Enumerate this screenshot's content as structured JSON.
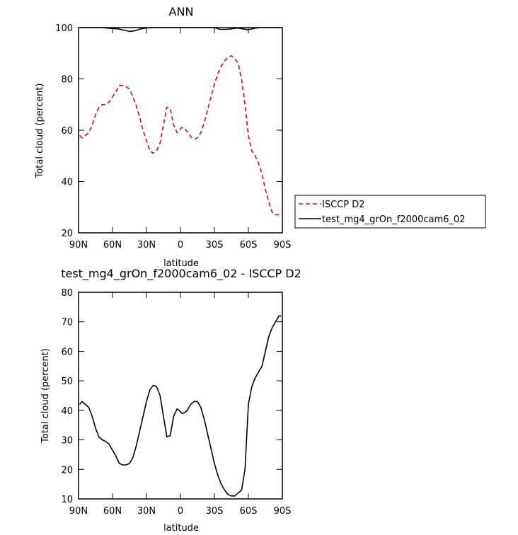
{
  "chart_data": [
    {
      "type": "line",
      "title": "ANN",
      "xlabel": "latitude",
      "ylabel": "Total cloud (percent)",
      "xlim": [
        90,
        -90
      ],
      "ylim": [
        20,
        100
      ],
      "x_ticks": [
        90,
        60,
        30,
        0,
        -30,
        -60,
        -90
      ],
      "x_tick_labels": [
        "90N",
        "60N",
        "30N",
        "0",
        "30S",
        "60S",
        "90S"
      ],
      "y_ticks": [
        20,
        40,
        60,
        80,
        100
      ],
      "y_tick_labels": [
        "20",
        "40",
        "60",
        "80",
        "100"
      ],
      "legend": {
        "placement": "right"
      },
      "series": [
        {
          "name": "ISCCP D2",
          "color": "#e8000b",
          "dash": "dashed",
          "x": [
            89,
            87,
            84,
            81,
            78,
            75,
            72,
            69,
            66,
            63,
            60,
            57,
            54,
            51,
            48,
            45,
            42,
            39,
            36,
            33,
            30,
            27,
            24,
            21,
            18,
            15,
            12,
            9,
            6,
            3,
            1,
            -1,
            -3,
            -6,
            -9,
            -12,
            -15,
            -18,
            -21,
            -24,
            -27,
            -30,
            -33,
            -36,
            -39,
            -42,
            -45,
            -48,
            -51,
            -54,
            -57,
            -60,
            -63,
            -66,
            -69,
            -72,
            -75,
            -78,
            -81,
            -84,
            -87,
            -89
          ],
          "y": [
            58,
            57,
            58,
            59,
            62,
            66,
            69,
            70,
            70,
            71,
            73,
            75,
            77.5,
            77.5,
            77,
            76,
            73,
            69.5,
            65,
            60,
            56,
            52,
            51,
            52,
            55,
            62,
            69,
            68.5,
            62,
            59,
            60,
            61,
            61,
            59.5,
            57.5,
            56.5,
            57,
            59,
            63,
            68,
            73,
            78,
            82,
            85,
            87,
            88.5,
            89,
            88,
            86,
            80,
            70,
            58,
            52,
            50,
            47,
            43,
            37,
            32,
            28,
            27,
            27,
            27
          ]
        },
        {
          "name": "test_mg4_grOn_f2000cam6_02",
          "color": "#000000",
          "dash": "solid",
          "x": [
            89,
            80,
            70,
            62,
            55,
            50,
            45,
            40,
            35,
            30,
            20,
            10,
            0,
            -10,
            -20,
            -30,
            -35,
            -40,
            -45,
            -50,
            -55,
            -60,
            -65,
            -70,
            -80,
            -89
          ],
          "y": [
            100,
            100,
            100,
            99.7,
            99.5,
            99.0,
            98.5,
            98.8,
            99.5,
            99.9,
            100,
            100,
            100,
            100,
            100,
            100,
            99.3,
            99.3,
            99.5,
            99.9,
            99.5,
            99.2,
            99.7,
            100,
            100,
            100
          ]
        }
      ]
    },
    {
      "type": "line",
      "title": "test_mg4_grOn_f2000cam6_02 - ISCCP D2",
      "xlabel": "latitude",
      "ylabel": "Total cloud (percent)",
      "xlim": [
        90,
        -90
      ],
      "ylim": [
        10,
        80
      ],
      "x_ticks": [
        90,
        60,
        30,
        0,
        -30,
        -60,
        -90
      ],
      "x_tick_labels": [
        "90N",
        "60N",
        "30N",
        "0",
        "30S",
        "60S",
        "90S"
      ],
      "y_ticks": [
        10,
        20,
        30,
        40,
        50,
        60,
        70,
        80
      ],
      "y_tick_labels": [
        "10",
        "20",
        "30",
        "40",
        "50",
        "60",
        "70",
        "80"
      ],
      "series": [
        {
          "color": "#000000",
          "dash": "solid",
          "x": [
            89,
            87,
            84,
            81,
            78,
            75,
            72,
            69,
            66,
            63,
            60,
            57,
            54,
            51,
            48,
            45,
            42,
            39,
            36,
            33,
            30,
            27,
            24,
            21,
            18,
            15,
            12,
            9,
            6,
            3,
            1,
            -1,
            -3,
            -6,
            -9,
            -12,
            -15,
            -18,
            -21,
            -24,
            -27,
            -30,
            -33,
            -36,
            -39,
            -42,
            -45,
            -48,
            -51,
            -54,
            -57,
            -60,
            -63,
            -66,
            -69,
            -72,
            -75,
            -78,
            -81,
            -84,
            -87,
            -89
          ],
          "y": [
            42,
            43,
            42,
            41,
            38,
            34,
            31,
            30,
            29.5,
            28.5,
            26.5,
            24.5,
            22,
            21.5,
            21.5,
            22,
            24,
            28,
            33,
            38,
            43,
            47,
            48.5,
            48,
            45,
            38,
            31,
            31.5,
            38,
            40.5,
            40,
            39,
            39,
            40,
            42,
            43,
            43,
            41,
            37,
            32,
            27,
            22,
            18,
            15,
            13,
            11.5,
            11,
            11,
            12,
            13,
            20,
            42,
            48,
            51,
            53,
            55,
            60,
            65,
            68,
            70,
            72,
            72
          ]
        }
      ]
    }
  ]
}
